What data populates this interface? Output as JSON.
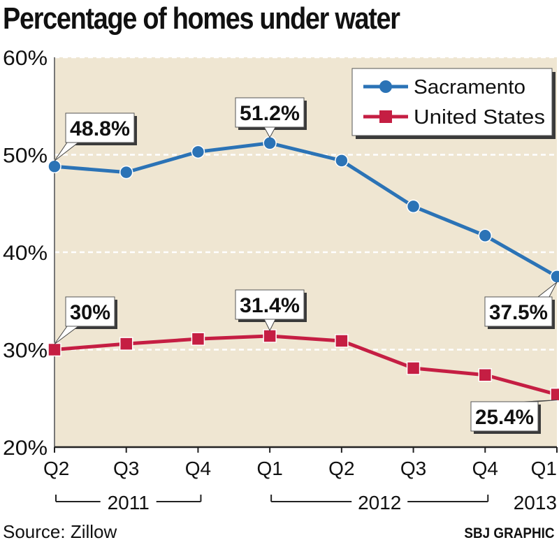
{
  "title": "Percentage of homes under water",
  "source": "Source: Zillow",
  "credit": "SBJ GRAPHIC",
  "colors": {
    "plot_bg": "#efe6d2",
    "sacramento": "#2b73b6",
    "united_states": "#c51e43",
    "grid": "#ffffff"
  },
  "chart_data": {
    "type": "line",
    "title": "Percentage of homes under water",
    "categories": [
      "Q2",
      "Q3",
      "Q4",
      "Q1",
      "Q2",
      "Q3",
      "Q4",
      "Q1"
    ],
    "year_groups": [
      {
        "label": "2011",
        "from": 0,
        "to": 2
      },
      {
        "label": "2012",
        "from": 3,
        "to": 6
      },
      {
        "label": "2013",
        "from": 7,
        "to": 7
      }
    ],
    "ylim": [
      20,
      60
    ],
    "yticks": [
      20,
      30,
      40,
      50,
      60
    ],
    "ytick_labels": [
      "20%",
      "30%",
      "40%",
      "50%",
      "60%"
    ],
    "grid": true,
    "legend_position": "top-right",
    "series": [
      {
        "name": "Sacramento",
        "marker": "circle",
        "color": "#2b73b6",
        "values": [
          48.8,
          48.2,
          50.3,
          51.2,
          49.4,
          44.7,
          41.7,
          37.5
        ]
      },
      {
        "name": "United States",
        "marker": "square",
        "color": "#c51e43",
        "values": [
          30.0,
          30.6,
          31.1,
          31.4,
          30.9,
          28.1,
          27.4,
          25.4
        ]
      }
    ],
    "annotations": [
      {
        "series": 0,
        "index": 0,
        "text": "48.8%"
      },
      {
        "series": 0,
        "index": 3,
        "text": "51.2%"
      },
      {
        "series": 0,
        "index": 7,
        "text": "37.5%"
      },
      {
        "series": 1,
        "index": 0,
        "text": "30%"
      },
      {
        "series": 1,
        "index": 3,
        "text": "31.4%"
      },
      {
        "series": 1,
        "index": 7,
        "text": "25.4%"
      }
    ]
  }
}
